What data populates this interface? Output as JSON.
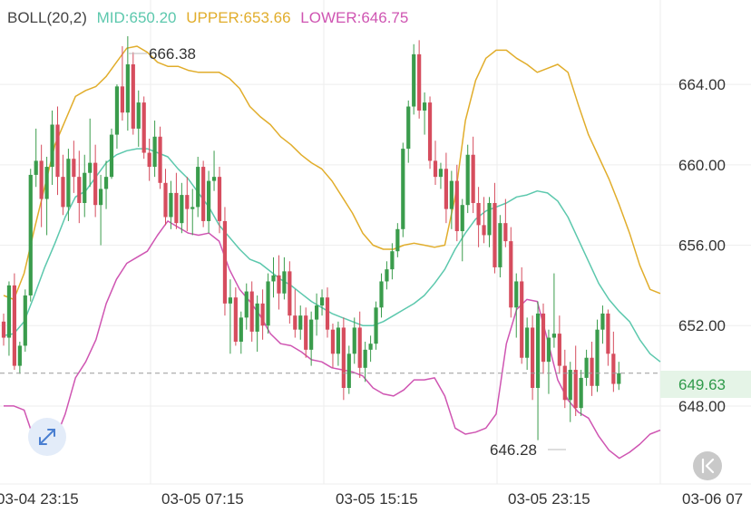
{
  "header": {
    "indicator": "BOLL(20,2)",
    "mid_label": "MID:650.20",
    "upper_label": "UPPER:653.66",
    "lower_label": "LOWER:646.75"
  },
  "colors": {
    "up": "#3a9c4c",
    "down": "#d64d5e",
    "mid": "#5cc8ad",
    "upper": "#e1ad2b",
    "lower": "#cf55b2",
    "current_tag_bg": "#e5f4e7",
    "current_tag_text": "#2f9a4a",
    "grid": "#eeeeee",
    "axis_text": "#333333"
  },
  "current_price": "649.63",
  "high_annotation": "666.38",
  "low_annotation": "646.28",
  "icons": {
    "expand": "expand-diagonal-icon",
    "collapse": "chevron-to-left-icon"
  },
  "chart_data": {
    "type": "candlestick",
    "title": "BOLL(20,2)",
    "y_ticks": [
      "664.00",
      "660.00",
      "656.00",
      "652.00",
      "648.00"
    ],
    "x_ticks": [
      "03-04 23:15",
      "03-05 07:15",
      "03-05 15:15",
      "03-05 23:15",
      "03-06 07"
    ],
    "ylim": [
      644.3,
      668.2
    ],
    "grid": true,
    "current_price": 649.63,
    "bollinger_last": {
      "mid": 650.2,
      "upper": 653.66,
      "lower": 646.75
    },
    "upper_band": [
      653.5,
      653.3,
      654.6,
      656.8,
      658.9,
      661.0,
      662.2,
      663.4,
      663.7,
      663.9,
      664.4,
      665.1,
      665.8,
      665.9,
      665.6,
      665.1,
      664.9,
      664.9,
      664.7,
      664.6,
      664.6,
      664.6,
      664.3,
      663.8,
      662.9,
      662.4,
      662.0,
      661.4,
      661.0,
      660.5,
      660.1,
      659.8,
      659.2,
      658.4,
      657.6,
      656.6,
      656.0,
      655.8,
      655.8,
      656.0,
      656.1,
      656.0,
      655.9,
      656.0,
      658.4,
      662.2,
      664.2,
      665.3,
      665.7,
      665.7,
      665.3,
      665.0,
      664.6,
      664.8,
      665.0,
      664.6,
      663.0,
      661.5,
      660.4,
      659.3,
      658.0,
      656.6,
      655.0,
      653.8,
      653.6
    ],
    "mid_band": [
      651.5,
      651.6,
      652.2,
      653.5,
      654.9,
      656.1,
      657.4,
      658.4,
      658.7,
      659.4,
      660.1,
      660.5,
      660.7,
      660.8,
      660.8,
      660.6,
      660.4,
      659.8,
      659.3,
      658.6,
      657.9,
      657.0,
      656.4,
      655.8,
      655.3,
      655.1,
      654.7,
      654.3,
      654.0,
      653.6,
      653.2,
      652.9,
      652.6,
      652.4,
      652.2,
      652.0,
      652.0,
      652.2,
      652.5,
      652.8,
      653.1,
      653.5,
      654.1,
      654.8,
      655.8,
      656.6,
      657.3,
      657.7,
      657.9,
      658.1,
      658.4,
      658.5,
      658.7,
      658.6,
      658.2,
      657.4,
      656.3,
      655.2,
      654.1,
      653.3,
      652.7,
      652.2,
      651.3,
      650.6,
      650.2
    ],
    "lower_band": [
      648.0,
      648.0,
      647.8,
      646.3,
      645.8,
      646.3,
      647.6,
      649.4,
      650.2,
      651.3,
      653.1,
      654.3,
      655.1,
      655.4,
      655.7,
      656.5,
      657.2,
      656.9,
      656.6,
      656.5,
      656.6,
      656.2,
      654.8,
      653.8,
      653.2,
      652.5,
      651.6,
      651.1,
      651.0,
      650.7,
      650.3,
      650.2,
      649.9,
      649.8,
      649.7,
      649.5,
      648.9,
      648.6,
      648.5,
      648.8,
      649.3,
      649.3,
      649.4,
      648.5,
      646.9,
      646.6,
      646.7,
      646.9,
      647.6,
      651.1,
      652.8,
      653.3,
      653.2,
      651.3,
      649.3,
      648.3,
      647.7,
      647.4,
      646.5,
      645.8,
      645.4,
      645.7,
      646.1,
      646.6,
      646.8
    ],
    "candles": [
      [
        652.2,
        652.6,
        651.0,
        651.4
      ],
      [
        651.4,
        654.2,
        650.5,
        654.0
      ],
      [
        654.0,
        654.6,
        649.8,
        650.0
      ],
      [
        650.0,
        651.2,
        649.6,
        651.0
      ],
      [
        651.0,
        653.8,
        650.7,
        653.5
      ],
      [
        653.5,
        659.8,
        653.2,
        659.5
      ],
      [
        659.5,
        661.8,
        658.9,
        660.2
      ],
      [
        660.2,
        661.0,
        656.9,
        658.3
      ],
      [
        658.3,
        660.4,
        656.5,
        659.9
      ],
      [
        659.9,
        662.7,
        659.0,
        662.0
      ],
      [
        662.0,
        662.9,
        658.5,
        659.4
      ],
      [
        659.4,
        660.5,
        657.5,
        657.9
      ],
      [
        657.9,
        660.8,
        657.2,
        660.3
      ],
      [
        660.3,
        661.2,
        658.6,
        659.4
      ],
      [
        659.4,
        660.7,
        657.1,
        658.1
      ],
      [
        658.1,
        660.5,
        657.4,
        659.6
      ],
      [
        659.6,
        662.3,
        658.9,
        660.1
      ],
      [
        660.1,
        661.0,
        657.4,
        658.0
      ],
      [
        658.0,
        659.5,
        656.0,
        658.8
      ],
      [
        658.8,
        660.2,
        657.8,
        659.4
      ],
      [
        659.4,
        661.8,
        659.3,
        661.5
      ],
      [
        661.5,
        664.0,
        660.8,
        663.9
      ],
      [
        663.9,
        665.9,
        662.2,
        662.6
      ],
      [
        662.6,
        666.4,
        661.7,
        665.0
      ],
      [
        665.0,
        665.6,
        661.5,
        661.8
      ],
      [
        661.8,
        663.7,
        660.9,
        663.1
      ],
      [
        663.1,
        663.4,
        660.3,
        660.6
      ],
      [
        660.6,
        661.3,
        659.2,
        659.9
      ],
      [
        659.9,
        662.2,
        659.4,
        661.4
      ],
      [
        661.4,
        661.9,
        658.8,
        659.1
      ],
      [
        659.1,
        659.8,
        657.0,
        657.4
      ],
      [
        657.4,
        659.2,
        656.8,
        658.6
      ],
      [
        658.6,
        659.6,
        656.8,
        657.1
      ],
      [
        657.1,
        659.1,
        656.6,
        658.5
      ],
      [
        658.5,
        659.4,
        656.7,
        657.8
      ],
      [
        657.8,
        658.8,
        656.5,
        657.9
      ],
      [
        657.9,
        660.4,
        657.4,
        659.9
      ],
      [
        659.9,
        660.2,
        656.9,
        657.2
      ],
      [
        657.2,
        659.7,
        656.6,
        659.2
      ],
      [
        659.2,
        660.7,
        658.7,
        659.4
      ],
      [
        659.4,
        659.9,
        656.6,
        657.2
      ],
      [
        657.2,
        657.9,
        652.5,
        653.1
      ],
      [
        653.1,
        654.3,
        650.6,
        653.4
      ],
      [
        653.4,
        653.9,
        651.0,
        651.2
      ],
      [
        651.2,
        652.7,
        650.6,
        652.4
      ],
      [
        652.4,
        654.1,
        651.8,
        653.7
      ],
      [
        653.7,
        654.2,
        651.2,
        651.7
      ],
      [
        651.7,
        653.5,
        650.7,
        653.1
      ],
      [
        653.1,
        653.8,
        651.3,
        652.0
      ],
      [
        652.0,
        654.6,
        651.6,
        654.2
      ],
      [
        654.2,
        655.4,
        653.4,
        654.5
      ],
      [
        654.5,
        655.5,
        652.8,
        653.6
      ],
      [
        653.6,
        655.4,
        653.3,
        654.7
      ],
      [
        654.7,
        655.2,
        652.1,
        652.5
      ],
      [
        652.5,
        653.8,
        651.4,
        651.8
      ],
      [
        651.8,
        653.0,
        651.3,
        652.5
      ],
      [
        652.5,
        652.9,
        650.4,
        650.8
      ],
      [
        650.8,
        652.7,
        650.0,
        652.3
      ],
      [
        652.3,
        653.6,
        651.5,
        653.0
      ],
      [
        653.0,
        653.8,
        652.5,
        653.4
      ],
      [
        653.4,
        653.9,
        651.4,
        651.8
      ],
      [
        651.8,
        652.1,
        649.9,
        650.6
      ],
      [
        650.6,
        652.2,
        650.0,
        651.9
      ],
      [
        651.9,
        652.4,
        648.3,
        648.9
      ],
      [
        648.9,
        651.0,
        648.6,
        650.6
      ],
      [
        650.6,
        652.4,
        650.1,
        651.9
      ],
      [
        651.9,
        652.7,
        649.4,
        649.9
      ],
      [
        649.9,
        651.2,
        649.2,
        650.8
      ],
      [
        650.8,
        651.5,
        650.2,
        651.1
      ],
      [
        651.1,
        653.2,
        650.8,
        652.9
      ],
      [
        652.9,
        654.6,
        652.4,
        654.2
      ],
      [
        654.2,
        655.2,
        653.8,
        654.8
      ],
      [
        654.8,
        656.1,
        654.3,
        655.7
      ],
      [
        655.7,
        657.1,
        655.4,
        656.8
      ],
      [
        656.8,
        661.1,
        656.4,
        660.8
      ],
      [
        660.8,
        663.2,
        660.1,
        662.9
      ],
      [
        662.9,
        666.0,
        662.5,
        665.5
      ],
      [
        665.5,
        666.2,
        662.3,
        662.7
      ],
      [
        662.7,
        663.6,
        661.5,
        663.1
      ],
      [
        663.1,
        663.4,
        659.8,
        660.2
      ],
      [
        660.2,
        661.2,
        659.0,
        659.4
      ],
      [
        659.4,
        660.1,
        658.8,
        659.8
      ],
      [
        659.8,
        660.6,
        657.1,
        657.8
      ],
      [
        657.8,
        659.7,
        656.8,
        659.2
      ],
      [
        659.2,
        660.0,
        656.2,
        656.7
      ],
      [
        656.7,
        658.3,
        655.2,
        658.0
      ],
      [
        658.0,
        661.0,
        657.6,
        660.5
      ],
      [
        660.5,
        661.4,
        657.6,
        658.1
      ],
      [
        658.1,
        658.9,
        655.9,
        657.0
      ],
      [
        657.0,
        658.4,
        656.1,
        656.5
      ],
      [
        656.5,
        658.4,
        655.9,
        658.1
      ],
      [
        658.1,
        659.1,
        654.6,
        654.9
      ],
      [
        654.9,
        657.5,
        654.4,
        657.1
      ],
      [
        657.1,
        658.3,
        655.9,
        656.2
      ],
      [
        656.2,
        656.9,
        652.4,
        652.9
      ],
      [
        652.9,
        654.6,
        651.4,
        654.2
      ],
      [
        654.2,
        654.9,
        650.1,
        650.4
      ],
      [
        650.4,
        652.4,
        649.8,
        651.9
      ],
      [
        651.9,
        652.5,
        648.3,
        648.9
      ],
      [
        648.9,
        653.2,
        646.3,
        652.6
      ],
      [
        652.6,
        653.1,
        649.6,
        650.2
      ],
      [
        650.2,
        651.8,
        648.6,
        651.4
      ],
      [
        651.4,
        654.6,
        650.9,
        651.6
      ],
      [
        651.6,
        652.5,
        649.6,
        650.0
      ],
      [
        650.0,
        650.8,
        647.9,
        648.3
      ],
      [
        648.3,
        650.2,
        647.2,
        649.8
      ],
      [
        649.8,
        651.0,
        647.5,
        647.9
      ],
      [
        647.9,
        649.8,
        647.5,
        649.4
      ],
      [
        649.4,
        650.8,
        649.0,
        650.4
      ],
      [
        650.4,
        651.2,
        648.5,
        649.0
      ],
      [
        649.0,
        652.3,
        648.7,
        651.8
      ],
      [
        651.8,
        653.0,
        651.1,
        652.6
      ],
      [
        652.6,
        652.8,
        650.0,
        650.6
      ],
      [
        650.6,
        651.7,
        648.7,
        649.1
      ],
      [
        649.1,
        650.2,
        648.8,
        649.63
      ]
    ]
  }
}
